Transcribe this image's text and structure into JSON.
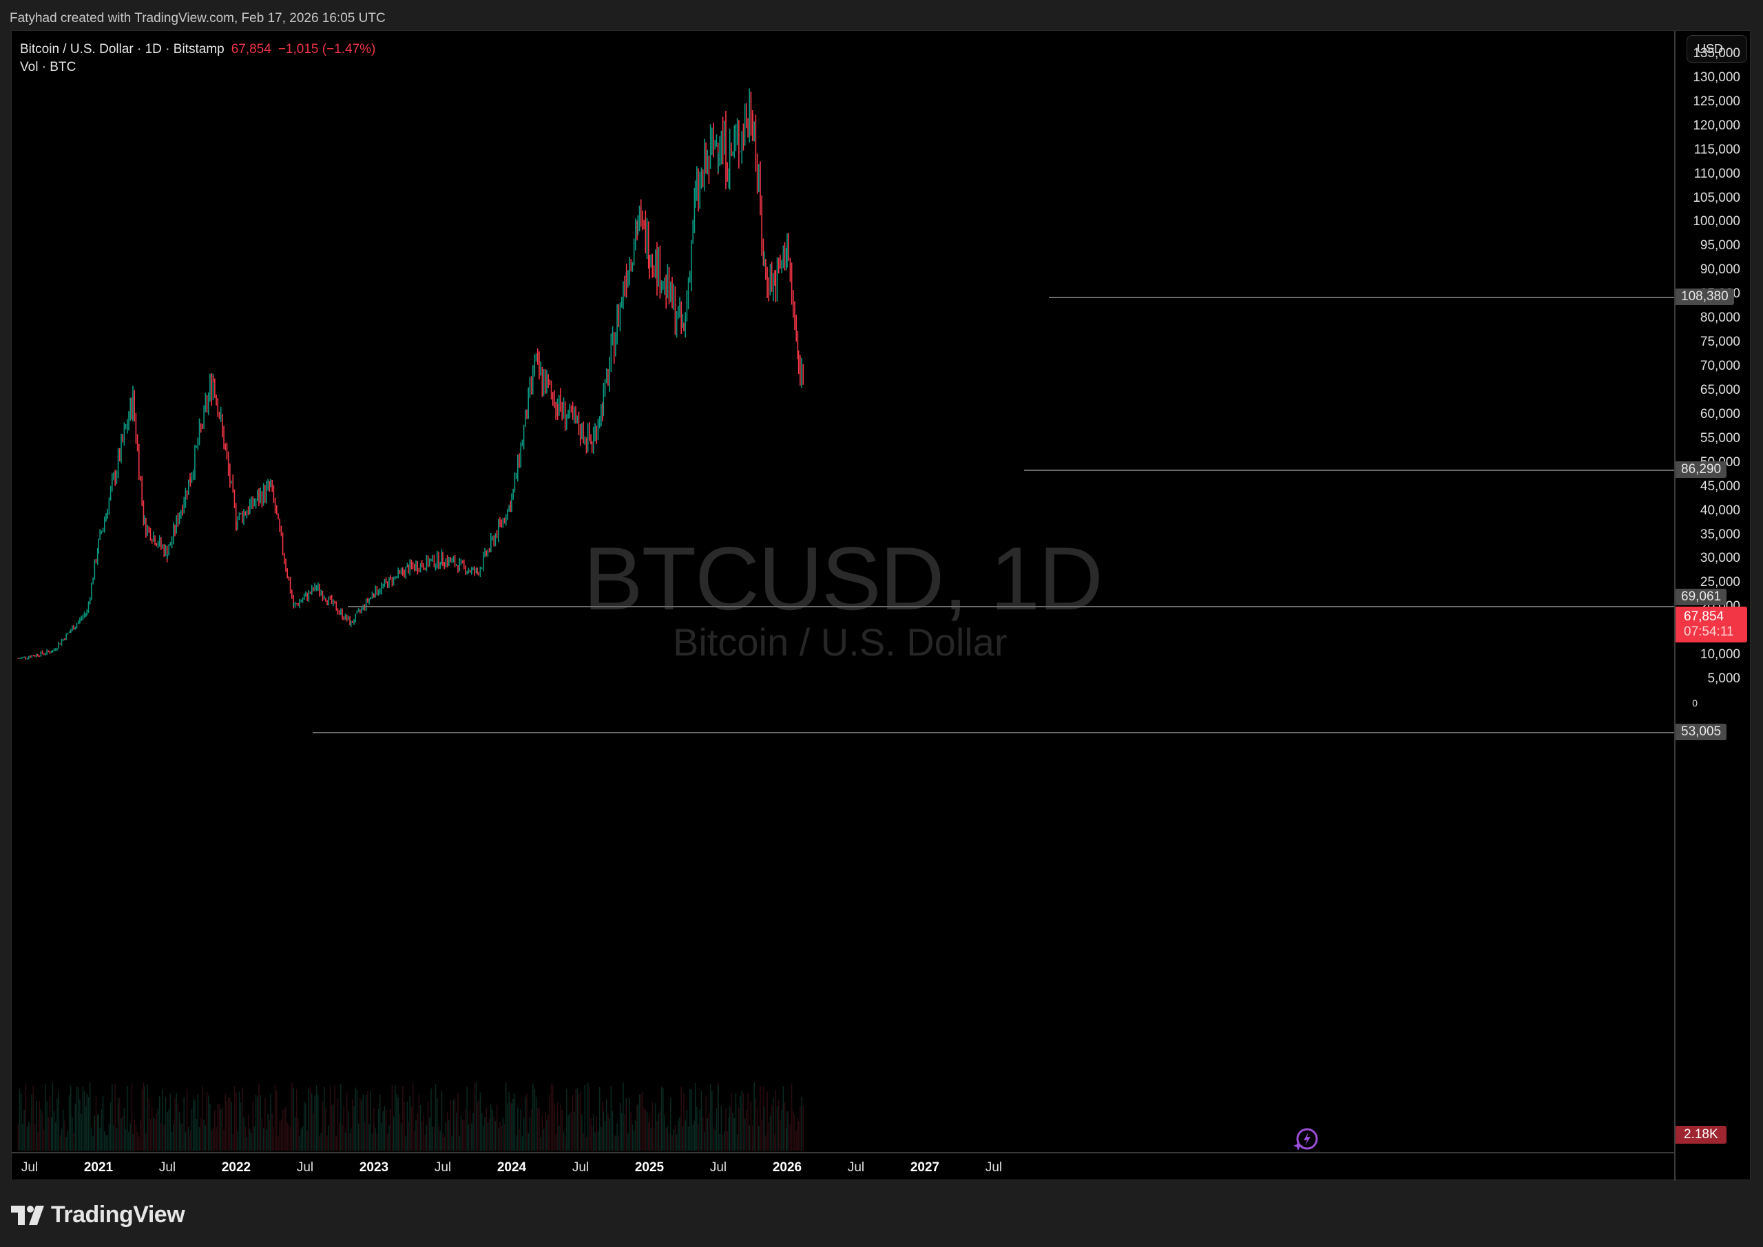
{
  "credit": "Fatyhad created with TradingView.com, Feb 17, 2026 16:05 UTC",
  "legend": {
    "symbol_line": "Bitcoin / U.S. Dollar · 1D · Bitstamp",
    "last_price": "67,854",
    "change": "−1,015 (−1.47%)",
    "volume_line": "Vol · BTC"
  },
  "watermark": {
    "title": "BTCUSD, 1D",
    "subtitle": "Bitcoin / U.S. Dollar"
  },
  "price_axis": {
    "currency_button": "USD",
    "ticks": [
      "135,000",
      "130,000",
      "125,000",
      "120,000",
      "115,000",
      "110,000",
      "105,000",
      "100,000",
      "95,000",
      "90,000",
      "85,000",
      "80,000",
      "75,000",
      "70,000",
      "65,000",
      "60,000",
      "55,000",
      "50,000",
      "45,000",
      "40,000",
      "35,000",
      "30,000",
      "25,000",
      "20,000",
      "15,000",
      "10,000",
      "5,000",
      "0"
    ],
    "level_labels": [
      "108,380",
      "86,290",
      "69,061",
      "53,005"
    ],
    "last_price_label": "67,854",
    "countdown": "07:54:11",
    "volume_label": "2.18K"
  },
  "time_axis": {
    "ticks": [
      {
        "label": "Jul",
        "year": false
      },
      {
        "label": "2021",
        "year": true
      },
      {
        "label": "Jul",
        "year": false
      },
      {
        "label": "2022",
        "year": true
      },
      {
        "label": "Jul",
        "year": false
      },
      {
        "label": "2023",
        "year": true
      },
      {
        "label": "Jul",
        "year": false
      },
      {
        "label": "2024",
        "year": true
      },
      {
        "label": "Jul",
        "year": false
      },
      {
        "label": "2025",
        "year": true
      },
      {
        "label": "Jul",
        "year": false
      },
      {
        "label": "2026",
        "year": true
      },
      {
        "label": "Jul",
        "year": false
      },
      {
        "label": "2027",
        "year": true
      },
      {
        "label": "Jul",
        "year": false
      }
    ]
  },
  "brand": "TradingView",
  "colors": {
    "up": "#089981",
    "down": "#f23645",
    "level_line": "#6b6b6b",
    "background": "#000000"
  },
  "chart_data": {
    "type": "line",
    "title": "BTCUSD, 1D",
    "subtitle": "Bitcoin / U.S. Dollar · 1D · Bitstamp",
    "xlabel": "",
    "ylabel": "USD",
    "ylim": [
      0,
      137000
    ],
    "grid": false,
    "x": [
      "2020-06",
      "2020-09",
      "2020-12",
      "2021-01",
      "2021-04",
      "2021-05",
      "2021-07",
      "2021-09",
      "2021-11",
      "2022-01",
      "2022-04",
      "2022-06",
      "2022-08",
      "2022-11",
      "2023-01",
      "2023-04",
      "2023-07",
      "2023-10",
      "2024-01",
      "2024-03",
      "2024-05",
      "2024-08",
      "2024-09",
      "2024-11",
      "2024-12",
      "2025-01",
      "2025-04",
      "2025-05",
      "2025-07",
      "2025-08",
      "2025-10",
      "2025-11",
      "2025-12",
      "2026-01",
      "2026-02",
      "2026-02-17"
    ],
    "series": [
      {
        "name": "BTCUSD close (approx.)",
        "values": [
          9200,
          10800,
          19000,
          33000,
          63000,
          37000,
          31000,
          47000,
          68000,
          38000,
          45000,
          20000,
          24000,
          16500,
          23000,
          28000,
          30000,
          27000,
          42000,
          70000,
          62000,
          54000,
          63000,
          90000,
          100000,
          95000,
          77000,
          105000,
          118000,
          113000,
          124000,
          90000,
          87000,
          95000,
          70000,
          67854
        ]
      }
    ],
    "horizontal_levels": [
      108380,
      86290,
      69061,
      53005
    ],
    "last_price": 67854,
    "change": -1015,
    "change_pct": -1.47,
    "volume_last": "2.18K",
    "y_ticks": [
      0,
      5000,
      10000,
      15000,
      20000,
      25000,
      30000,
      35000,
      40000,
      45000,
      50000,
      55000,
      60000,
      65000,
      70000,
      75000,
      80000,
      85000,
      90000,
      95000,
      100000,
      105000,
      110000,
      115000,
      120000,
      125000,
      130000,
      135000
    ],
    "x_ticks": [
      "Jul",
      "2021",
      "Jul",
      "2022",
      "Jul",
      "2023",
      "Jul",
      "2024",
      "Jul",
      "2025",
      "Jul",
      "2026",
      "Jul",
      "2027",
      "Jul"
    ]
  }
}
